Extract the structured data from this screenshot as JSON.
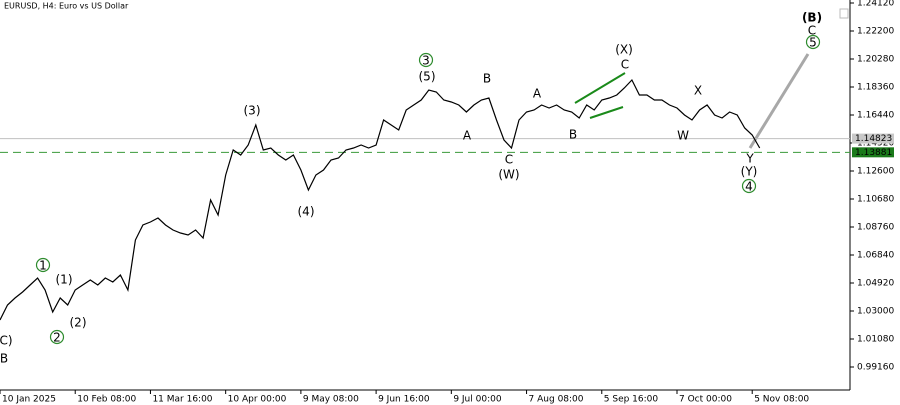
{
  "chart_data": {
    "type": "line",
    "title": "EURUSD, H4:  Euro vs US Dollar",
    "x": [
      0,
      1,
      2,
      3,
      4,
      5,
      6,
      7,
      8,
      9,
      10,
      11,
      12,
      13,
      14,
      15,
      16,
      17,
      18,
      19,
      20,
      21,
      22,
      23,
      24,
      25,
      26,
      27,
      28,
      29,
      30,
      31,
      32,
      33,
      34,
      35,
      36,
      37,
      38,
      39,
      40,
      41,
      42,
      43,
      44,
      45,
      46,
      47,
      48,
      49,
      50,
      51,
      52,
      53,
      54,
      55,
      56,
      57,
      58,
      59,
      60,
      61,
      62,
      63,
      64,
      65,
      66,
      67,
      68,
      69,
      70,
      71,
      72,
      73,
      74,
      75,
      76,
      77,
      78,
      79,
      80,
      81,
      82,
      83,
      84,
      85,
      86,
      87,
      88,
      89,
      90,
      91,
      92,
      93,
      94,
      95,
      96,
      97,
      98,
      99,
      100,
      101
    ],
    "series": [
      {
        "color": "#000000",
        "values": [
          1.02383,
          1.03411,
          1.03891,
          1.04303,
          1.04783,
          1.05263,
          1.0444,
          1.02931,
          1.03891,
          1.03411,
          1.0444,
          1.04783,
          1.05126,
          1.04783,
          1.05263,
          1.04989,
          1.05469,
          1.0444,
          1.07869,
          1.08897,
          1.09103,
          1.09377,
          1.08897,
          1.08554,
          1.08349,
          1.08211,
          1.08554,
          1.08006,
          1.10611,
          1.09583,
          1.12326,
          1.1404,
          1.13697,
          1.14383,
          1.15754,
          1.1404,
          1.14177,
          1.13697,
          1.13354,
          1.13697,
          1.12669,
          1.11297,
          1.12326,
          1.12669,
          1.13354,
          1.13491,
          1.1404,
          1.14177,
          1.14383,
          1.14177,
          1.14383,
          1.16097,
          1.15754,
          1.15411,
          1.16783,
          1.17126,
          1.17469,
          1.18154,
          1.18017,
          1.17469,
          1.17331,
          1.17126,
          1.16646,
          1.17126,
          1.17469,
          1.17606,
          1.16097,
          1.14726,
          1.14177,
          1.16097,
          1.16646,
          1.16783,
          1.17126,
          1.1692,
          1.17126,
          1.16783,
          1.16646,
          1.16234,
          1.17126,
          1.16783,
          1.17469,
          1.17606,
          1.17811,
          1.18291,
          1.1884,
          1.17811,
          1.17811,
          1.17469,
          1.17469,
          1.17126,
          1.1692,
          1.1644,
          1.16097,
          1.16783,
          1.17126,
          1.1644,
          1.16234,
          1.16646,
          1.1644,
          1.15549,
          1.15069,
          1.14177
        ]
      }
    ],
    "xlim": [
      0,
      113
    ],
    "xticks": [
      {
        "value": 0,
        "label": "10 Jan 2025"
      },
      {
        "value": 10,
        "label": "10 Feb 08:00"
      },
      {
        "value": 20,
        "label": "11 Mar 16:00"
      },
      {
        "value": 30,
        "label": "10 Apr 00:00"
      },
      {
        "value": 40,
        "label": "9 May 08:00"
      },
      {
        "value": 50,
        "label": "9 Jun 16:00"
      },
      {
        "value": 60,
        "label": "9 Jul 00:00"
      },
      {
        "value": 70,
        "label": "7 Aug 08:00"
      },
      {
        "value": 80,
        "label": "5 Sep 16:00"
      },
      {
        "value": 90,
        "label": "7 Oct 00:00"
      },
      {
        "value": 100,
        "label": "5 Nov 08:00"
      }
    ],
    "ylim": [
      0.97583,
      1.24326
    ],
    "yticks": [
      {
        "value": 1.2412,
        "label": "1.24120"
      },
      {
        "value": 1.222,
        "label": "1.22200"
      },
      {
        "value": 1.2028,
        "label": "1.20280"
      },
      {
        "value": 1.1836,
        "label": "1.18360"
      },
      {
        "value": 1.1644,
        "label": "1.16440"
      },
      {
        "value": 1.1452,
        "label": "1.14520"
      },
      {
        "value": 1.126,
        "label": "1.12600"
      },
      {
        "value": 1.1068,
        "label": "1.10680"
      },
      {
        "value": 1.0876,
        "label": "1.08760"
      },
      {
        "value": 1.0684,
        "label": "1.06840"
      },
      {
        "value": 1.0492,
        "label": "1.04920"
      },
      {
        "value": 1.03,
        "label": "1.03000"
      },
      {
        "value": 1.0108,
        "label": "1.01080"
      },
      {
        "value": 0.9916,
        "label": "0.99160"
      }
    ],
    "bid_price": 1.14823,
    "level_price": 1.13881,
    "annotations": [
      {
        "text": "C)",
        "color": "#1a1a80"
      },
      {
        "text": "B",
        "color": "#8b1a1a"
      },
      {
        "text": "1",
        "color": "#2e8b2e",
        "circled": true
      },
      {
        "text": "(1)",
        "color": "#1a1a80"
      },
      {
        "text": "(2)",
        "color": "#1a1a80"
      },
      {
        "text": "2",
        "color": "#2e8b2e",
        "circled": true
      },
      {
        "text": "(3)",
        "color": "#1a1a80"
      },
      {
        "text": "(4)",
        "color": "#1a1a80"
      },
      {
        "text": "3",
        "color": "#2e8b2e",
        "circled": true
      },
      {
        "text": "(5)",
        "color": "#1a1a80"
      },
      {
        "text": "A",
        "color": "#8b1a1a"
      },
      {
        "text": "B",
        "color": "#8b1a1a"
      },
      {
        "text": "C",
        "color": "#8b1a1a"
      },
      {
        "text": "(W)",
        "color": "#1a1a80"
      },
      {
        "text": "A",
        "color": "#8b1a1a"
      },
      {
        "text": "B",
        "color": "#8b1a1a"
      },
      {
        "text": "C",
        "color": "#8b1a1a"
      },
      {
        "text": "(X)",
        "color": "#1a1a80"
      },
      {
        "text": "X",
        "color": "#8b1a1a"
      },
      {
        "text": "W",
        "color": "#8b1a1a"
      },
      {
        "text": "Y",
        "color": "#8b1a1a"
      },
      {
        "text": "(Y)",
        "color": "#1a1a80"
      },
      {
        "text": "4",
        "color": "#2e8b2e",
        "circled": true
      },
      {
        "text": "(B)",
        "color": "#1a1a80"
      },
      {
        "text": "C",
        "color": "#8b1a1a"
      },
      {
        "text": "5",
        "color": "#2e8b2e",
        "circled": true
      }
    ]
  }
}
